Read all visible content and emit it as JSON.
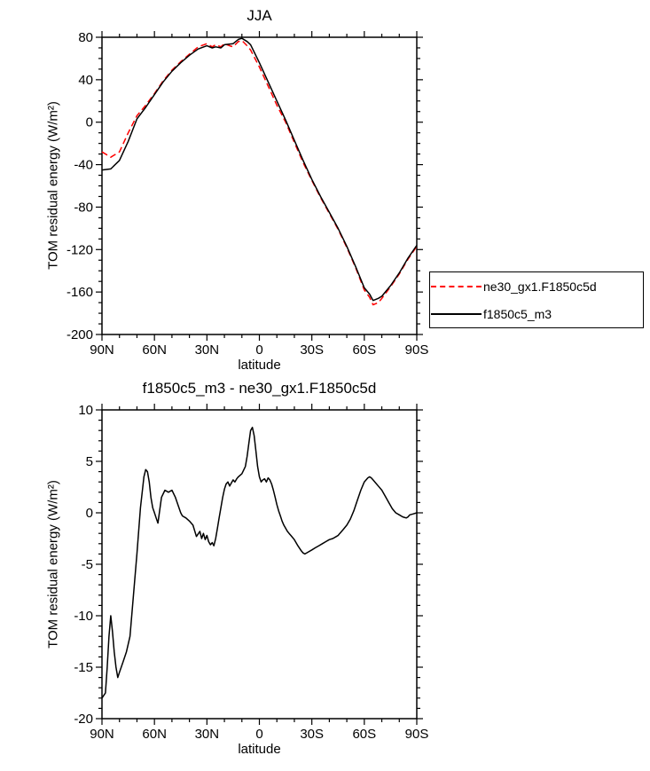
{
  "chart_data": [
    {
      "type": "line",
      "title": "JJA",
      "xlabel": "latitude",
      "ylabel": "TOM residual energy (W/m²)",
      "xlim": [
        90,
        -90
      ],
      "ylim": [
        -200,
        80
      ],
      "yticks": [
        80,
        40,
        0,
        -40,
        -80,
        -120,
        -160,
        -200
      ],
      "ytick_labels": [
        "80",
        "40",
        "0",
        "-40",
        "-80",
        "-120",
        "-160",
        "-200"
      ],
      "y_minor_step": 10,
      "xticks": [
        90,
        60,
        30,
        0,
        -30,
        -60,
        -90
      ],
      "xtick_labels": [
        "90N",
        "60N",
        "30N",
        "0",
        "30S",
        "60S",
        "90S"
      ],
      "x_minor_step": 10,
      "grid": false,
      "legend_position": "outside-right-bottom",
      "series": [
        {
          "name": "ne30_gx1.F1850c5d",
          "color": "#ff0000",
          "dash": "7,4",
          "points": [
            [
              90,
              -28
            ],
            [
              85,
              -33
            ],
            [
              80,
              -28
            ],
            [
              75,
              -10
            ],
            [
              70,
              6
            ],
            [
              65,
              16
            ],
            [
              60,
              27
            ],
            [
              55,
              39
            ],
            [
              50,
              49
            ],
            [
              45,
              57
            ],
            [
              40,
              64
            ],
            [
              35,
              71
            ],
            [
              30,
              74
            ],
            [
              27,
              71
            ],
            [
              25,
              73
            ],
            [
              22,
              71
            ],
            [
              20,
              74
            ],
            [
              17,
              72
            ],
            [
              15,
              71
            ],
            [
              12,
              76
            ],
            [
              10,
              77
            ],
            [
              7,
              72
            ],
            [
              5,
              68
            ],
            [
              0,
              52
            ],
            [
              -5,
              34
            ],
            [
              -10,
              16
            ],
            [
              -15,
              0
            ],
            [
              -20,
              -19
            ],
            [
              -25,
              -38
            ],
            [
              -30,
              -55
            ],
            [
              -35,
              -71
            ],
            [
              -40,
              -86
            ],
            [
              -45,
              -101
            ],
            [
              -50,
              -118
            ],
            [
              -55,
              -137
            ],
            [
              -60,
              -158
            ],
            [
              -63,
              -165
            ],
            [
              -65,
              -172
            ],
            [
              -68,
              -170
            ],
            [
              -70,
              -166
            ],
            [
              -75,
              -155
            ],
            [
              -80,
              -143
            ],
            [
              -85,
              -129
            ],
            [
              -90,
              -117
            ]
          ]
        },
        {
          "name": "f1850c5_m3",
          "color": "#000000",
          "dash": "",
          "points": [
            [
              90,
              -45
            ],
            [
              85,
              -44
            ],
            [
              80,
              -36
            ],
            [
              75,
              -18
            ],
            [
              70,
              3
            ],
            [
              65,
              14
            ],
            [
              60,
              26
            ],
            [
              55,
              38
            ],
            [
              50,
              48
            ],
            [
              45,
              56
            ],
            [
              40,
              63
            ],
            [
              35,
              69
            ],
            [
              30,
              72
            ],
            [
              27,
              70
            ],
            [
              25,
              71
            ],
            [
              22,
              70
            ],
            [
              20,
              73
            ],
            [
              15,
              74
            ],
            [
              12,
              78
            ],
            [
              10,
              79
            ],
            [
              7,
              76
            ],
            [
              5,
              73
            ],
            [
              0,
              56
            ],
            [
              -5,
              38
            ],
            [
              -10,
              20
            ],
            [
              -15,
              2
            ],
            [
              -20,
              -17
            ],
            [
              -25,
              -36
            ],
            [
              -30,
              -54
            ],
            [
              -35,
              -70
            ],
            [
              -40,
              -85
            ],
            [
              -45,
              -100
            ],
            [
              -50,
              -117
            ],
            [
              -55,
              -136
            ],
            [
              -60,
              -156
            ],
            [
              -63,
              -162
            ],
            [
              -65,
              -168
            ],
            [
              -68,
              -166
            ],
            [
              -70,
              -164
            ],
            [
              -75,
              -154
            ],
            [
              -80,
              -142
            ],
            [
              -85,
              -128
            ],
            [
              -90,
              -116
            ]
          ]
        }
      ]
    },
    {
      "type": "line",
      "title": "f1850c5_m3 - ne30_gx1.F1850c5d",
      "xlabel": "latitude",
      "ylabel": "TOM residual energy (W/m²)",
      "xlim": [
        90,
        -90
      ],
      "ylim": [
        -20,
        10
      ],
      "yticks": [
        10,
        5,
        0,
        -5,
        -10,
        -15,
        -20
      ],
      "ytick_labels": [
        "10",
        "5",
        "0",
        "-5",
        "-10",
        "-15",
        "-20"
      ],
      "y_minor_step": 1,
      "xticks": [
        90,
        60,
        30,
        0,
        -30,
        -60,
        -90
      ],
      "xtick_labels": [
        "90N",
        "60N",
        "30N",
        "0",
        "30S",
        "60S",
        "90S"
      ],
      "x_minor_step": 10,
      "grid": false,
      "legend_position": "none",
      "series": [
        {
          "name": "f1850c5_m3 - ne30_gx1.F1850c5d",
          "color": "#000000",
          "dash": "",
          "points": [
            [
              90,
              -18
            ],
            [
              88,
              -17.5
            ],
            [
              87,
              -15
            ],
            [
              86,
              -12
            ],
            [
              85,
              -10
            ],
            [
              84,
              -11.5
            ],
            [
              83,
              -13.5
            ],
            [
              82,
              -15
            ],
            [
              81,
              -16
            ],
            [
              80,
              -15.5
            ],
            [
              78,
              -14.5
            ],
            [
              76,
              -13.5
            ],
            [
              74,
              -12
            ],
            [
              72,
              -8
            ],
            [
              70,
              -4
            ],
            [
              68,
              0.5
            ],
            [
              66,
              3.5
            ],
            [
              65,
              4.2
            ],
            [
              64,
              4
            ],
            [
              63,
              3
            ],
            [
              62,
              1.5
            ],
            [
              61,
              0.5
            ],
            [
              60,
              0
            ],
            [
              59,
              -0.5
            ],
            [
              58,
              -1
            ],
            [
              56,
              1.5
            ],
            [
              54,
              2.2
            ],
            [
              52,
              2
            ],
            [
              50,
              2.2
            ],
            [
              48,
              1.5
            ],
            [
              46,
              0.5
            ],
            [
              45,
              0
            ],
            [
              44,
              -0.3
            ],
            [
              42,
              -0.5
            ],
            [
              40,
              -0.8
            ],
            [
              38,
              -1.2
            ],
            [
              36,
              -2.3
            ],
            [
              34,
              -1.8
            ],
            [
              33,
              -2.5
            ],
            [
              32,
              -2
            ],
            [
              31,
              -2.6
            ],
            [
              30,
              -2.2
            ],
            [
              29,
              -2.8
            ],
            [
              28,
              -3.1
            ],
            [
              27,
              -2.9
            ],
            [
              26,
              -3.2
            ],
            [
              25,
              -2.5
            ],
            [
              24,
              -1.5
            ],
            [
              23,
              -0.5
            ],
            [
              22,
              0.5
            ],
            [
              21,
              1.5
            ],
            [
              20,
              2.3
            ],
            [
              19,
              2.8
            ],
            [
              18,
              3
            ],
            [
              17,
              2.6
            ],
            [
              16,
              2.9
            ],
            [
              15,
              3.2
            ],
            [
              14,
              3
            ],
            [
              13,
              3.3
            ],
            [
              12,
              3.5
            ],
            [
              10,
              3.8
            ],
            [
              8,
              4.5
            ],
            [
              7,
              5.5
            ],
            [
              6,
              6.8
            ],
            [
              5,
              8
            ],
            [
              4,
              8.3
            ],
            [
              3,
              7.5
            ],
            [
              2,
              6
            ],
            [
              1,
              4.5
            ],
            [
              0,
              3.5
            ],
            [
              -1,
              3
            ],
            [
              -2,
              3.2
            ],
            [
              -3,
              3.3
            ],
            [
              -4,
              3
            ],
            [
              -5,
              3.4
            ],
            [
              -6,
              3.2
            ],
            [
              -7,
              2.8
            ],
            [
              -8,
              2.2
            ],
            [
              -9,
              1.5
            ],
            [
              -10,
              0.8
            ],
            [
              -11,
              0.2
            ],
            [
              -12,
              -0.3
            ],
            [
              -13,
              -0.8
            ],
            [
              -14,
              -1.2
            ],
            [
              -15,
              -1.5
            ],
            [
              -16,
              -1.8
            ],
            [
              -17,
              -2
            ],
            [
              -18,
              -2.2
            ],
            [
              -20,
              -2.6
            ],
            [
              -22,
              -3.2
            ],
            [
              -24,
              -3.7
            ],
            [
              -25,
              -3.9
            ],
            [
              -26,
              -4
            ],
            [
              -28,
              -3.8
            ],
            [
              -30,
              -3.6
            ],
            [
              -32,
              -3.4
            ],
            [
              -34,
              -3.2
            ],
            [
              -36,
              -3
            ],
            [
              -38,
              -2.8
            ],
            [
              -40,
              -2.6
            ],
            [
              -42,
              -2.5
            ],
            [
              -44,
              -2.3
            ],
            [
              -45,
              -2.2
            ],
            [
              -46,
              -2
            ],
            [
              -48,
              -1.6
            ],
            [
              -50,
              -1.2
            ],
            [
              -52,
              -0.6
            ],
            [
              -54,
              0.2
            ],
            [
              -56,
              1.2
            ],
            [
              -58,
              2.2
            ],
            [
              -60,
              3
            ],
            [
              -62,
              3.4
            ],
            [
              -63,
              3.5
            ],
            [
              -64,
              3.4
            ],
            [
              -65,
              3.2
            ],
            [
              -66,
              3
            ],
            [
              -68,
              2.6
            ],
            [
              -70,
              2.2
            ],
            [
              -72,
              1.6
            ],
            [
              -74,
              1
            ],
            [
              -76,
              0.4
            ],
            [
              -78,
              0
            ],
            [
              -80,
              -0.2
            ],
            [
              -82,
              -0.4
            ],
            [
              -84,
              -0.5
            ],
            [
              -85,
              -0.4
            ],
            [
              -86,
              -0.2
            ],
            [
              -88,
              -0.1
            ],
            [
              -90,
              0
            ]
          ]
        }
      ]
    }
  ],
  "legend": {
    "entries": [
      {
        "label": "ne30_gx1.F1850c5d",
        "color": "#ff0000",
        "style": "dashed"
      },
      {
        "label": "f1850c5_m3",
        "color": "#000000",
        "style": "solid"
      }
    ]
  }
}
